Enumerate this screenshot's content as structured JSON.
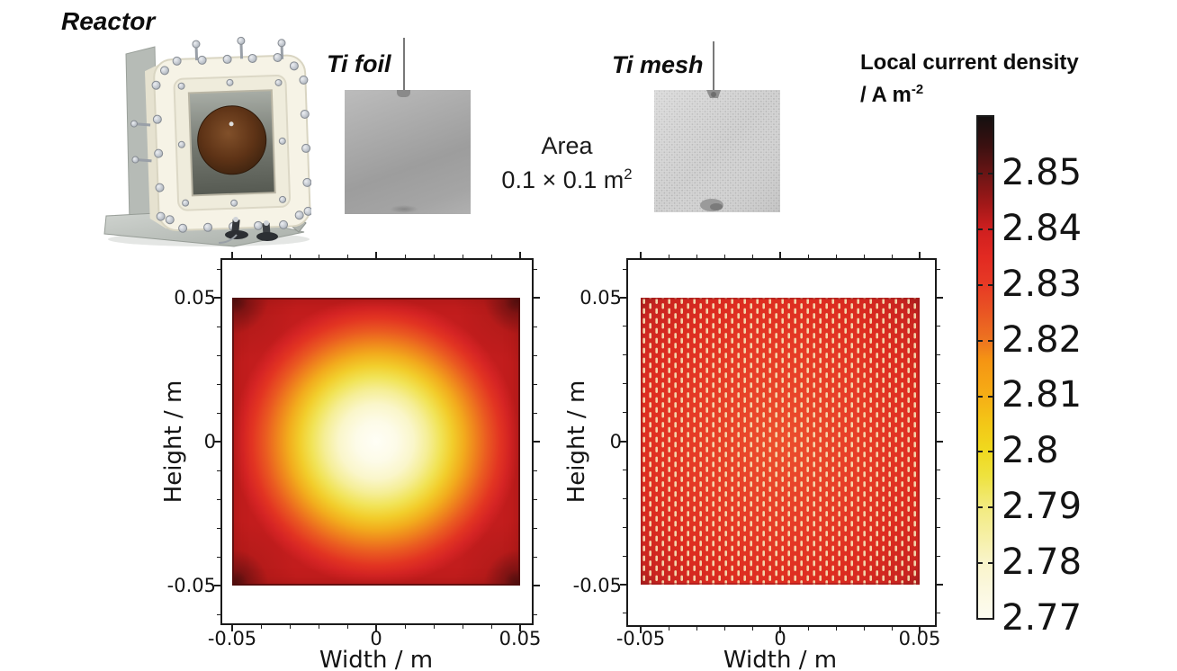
{
  "reactor": {
    "label": "Reactor"
  },
  "electrodes": {
    "foil_label": "Ti foil",
    "mesh_label": "Ti mesh",
    "area_line1": "Area",
    "area_value": "0.1 × 0.1 m",
    "area_exp": "2"
  },
  "colorbar": {
    "title": "Local current density",
    "unit_prefix": "/ A m",
    "unit_exp": "-2",
    "ticks": [
      "2.85",
      "2.84",
      "2.83",
      "2.82",
      "2.81",
      "2.8",
      "2.79",
      "2.78",
      "2.77"
    ],
    "value_range": [
      2.77,
      2.86
    ],
    "gradient_top_to_bottom": [
      "#151010",
      "#6b1515",
      "#cf1f1f",
      "#e73a25",
      "#ed7420",
      "#f6ad15",
      "#f0d91e",
      "#f2ea7c",
      "#f9f4c8",
      "#fdfcf0"
    ]
  },
  "plots": {
    "foil": {
      "xlabel": "Width / m",
      "ylabel": "Height / m",
      "xticks": [
        "-0.05",
        "0",
        "0.05"
      ],
      "yticks": [
        "0.05",
        "0",
        "-0.05"
      ]
    },
    "mesh": {
      "xlabel": "Width / m",
      "ylabel": "Height / m",
      "xticks": [
        "-0.05",
        "0",
        "0.05"
      ],
      "yticks": [
        "0.05",
        "0",
        "-0.05"
      ]
    }
  },
  "chart_data": [
    {
      "type": "heatmap",
      "title": "Ti foil — local current density distribution",
      "xlabel": "Width / m",
      "ylabel": "Height / m",
      "x_range": [
        -0.05,
        0.05
      ],
      "y_range": [
        -0.05,
        0.05
      ],
      "x_ticks": [
        -0.05,
        0,
        0.05
      ],
      "y_ticks": [
        0.05,
        0,
        -0.05
      ],
      "value_label": "Local current density / A m⁻²",
      "value_range": [
        2.77,
        2.86
      ],
      "distribution": "concentric rounded-square gradient: minimum (white ~2.77) at center, rising through yellow/orange/red toward edges, maximum (near-black ~2.86) at the four corners",
      "grid_x": [
        -0.05,
        -0.025,
        0,
        0.025,
        0.05
      ],
      "grid_y": [
        0.05,
        0.025,
        0,
        -0.025,
        -0.05
      ],
      "values": [
        [
          2.86,
          2.845,
          2.84,
          2.845,
          2.86
        ],
        [
          2.845,
          2.8,
          2.79,
          2.8,
          2.845
        ],
        [
          2.84,
          2.79,
          2.77,
          2.79,
          2.84
        ],
        [
          2.845,
          2.8,
          2.79,
          2.8,
          2.845
        ],
        [
          2.86,
          2.845,
          2.84,
          2.845,
          2.86
        ]
      ]
    },
    {
      "type": "heatmap",
      "title": "Ti mesh — local current density distribution",
      "xlabel": "Width / m",
      "ylabel": "Height / m",
      "x_range": [
        -0.05,
        0.05
      ],
      "y_range": [
        -0.05,
        0.05
      ],
      "x_ticks": [
        -0.05,
        0,
        0.05
      ],
      "y_ticks": [
        0.05,
        0,
        -0.05
      ],
      "value_label": "Local current density / A m⁻²",
      "value_range": [
        2.77,
        2.86
      ],
      "distribution": "nearly uniform red field ~2.83 with periodic pale vertical-dash perforations (mesh openings); slightly darker (~2.845) along edges and corners",
      "grid_x": [
        -0.05,
        -0.025,
        0,
        0.025,
        0.05
      ],
      "grid_y": [
        0.05,
        0.025,
        0,
        -0.025,
        -0.05
      ],
      "values": [
        [
          2.845,
          2.84,
          2.84,
          2.84,
          2.845
        ],
        [
          2.84,
          2.83,
          2.83,
          2.83,
          2.84
        ],
        [
          2.84,
          2.83,
          2.825,
          2.83,
          2.84
        ],
        [
          2.84,
          2.83,
          2.83,
          2.83,
          2.84
        ],
        [
          2.845,
          2.84,
          2.84,
          2.84,
          2.845
        ]
      ]
    }
  ]
}
